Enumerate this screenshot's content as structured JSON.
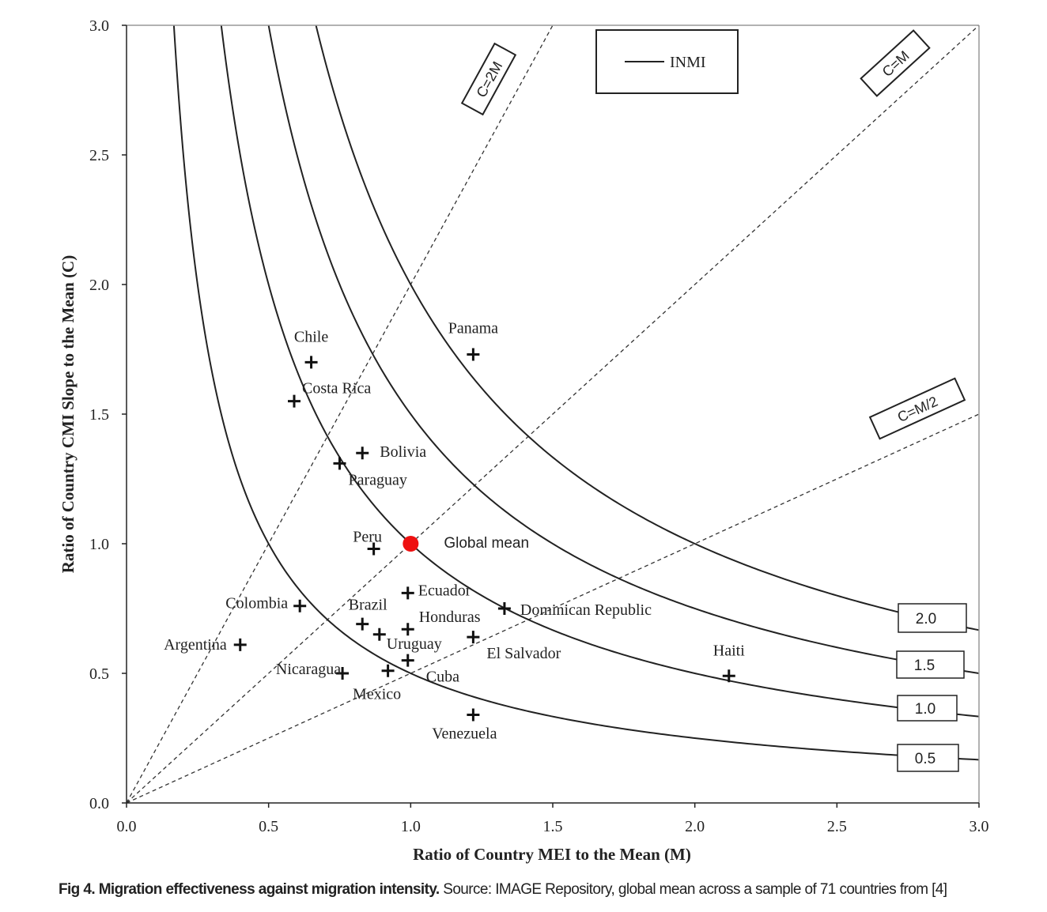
{
  "chart_data": {
    "type": "scatter",
    "xlabel": "Ratio of Country MEI to the Mean (M)",
    "ylabel": "Ratio of Country CMI Slope to the Mean (C)",
    "xlim": [
      0,
      3
    ],
    "ylim": [
      0,
      3
    ],
    "xticks": [
      {
        "value": 0,
        "label": "0.0"
      },
      {
        "value": 0.5,
        "label": "0.5"
      },
      {
        "value": 1,
        "label": "1.0"
      },
      {
        "value": 1.5,
        "label": "1.5"
      },
      {
        "value": 2,
        "label": "2.0"
      },
      {
        "value": 2.5,
        "label": "2.5"
      },
      {
        "value": 3,
        "label": "3.0"
      }
    ],
    "yticks": [
      {
        "value": 0,
        "label": "0.0"
      },
      {
        "value": 0.5,
        "label": "0.5"
      },
      {
        "value": 1,
        "label": "1.0"
      },
      {
        "value": 1.5,
        "label": "1.5"
      },
      {
        "value": 2,
        "label": "2.0"
      },
      {
        "value": 2.5,
        "label": "2.5"
      },
      {
        "value": 3,
        "label": "3.0"
      }
    ],
    "legend": "INMI",
    "curves": [
      {
        "value": 2,
        "label": "2.0"
      },
      {
        "value": 1.5,
        "label": "1.5"
      },
      {
        "value": 1,
        "label": "1.0"
      },
      {
        "value": 0.5,
        "label": "0.5"
      }
    ],
    "ref_lines": [
      {
        "label": "C=2M",
        "slope": 2
      },
      {
        "label": "C=M",
        "slope": 1
      },
      {
        "label": "C=M/2",
        "slope": 0.5
      }
    ],
    "points": [
      {
        "label": "Chile",
        "x": 0.65,
        "y": 1.7
      },
      {
        "label": "Panama",
        "x": 1.22,
        "y": 1.73
      },
      {
        "label": "Costa Rica",
        "x": 0.59,
        "y": 1.55
      },
      {
        "label": "Bolivia",
        "x": 0.83,
        "y": 1.35
      },
      {
        "label": "Paraguay",
        "x": 0.75,
        "y": 1.31
      },
      {
        "label": "Peru",
        "x": 0.87,
        "y": 0.98
      },
      {
        "label": "Ecuador",
        "x": 0.99,
        "y": 0.81
      },
      {
        "label": "Colombia",
        "x": 0.61,
        "y": 0.76
      },
      {
        "label": "Dominican Republic",
        "x": 1.33,
        "y": 0.75
      },
      {
        "label": "Brazil",
        "x": 0.83,
        "y": 0.69
      },
      {
        "label": "Honduras",
        "x": 0.99,
        "y": 0.67
      },
      {
        "label": "Uruguay",
        "x": 0.89,
        "y": 0.65
      },
      {
        "label": "El Salvador",
        "x": 1.22,
        "y": 0.64
      },
      {
        "label": "Argentina",
        "x": 0.4,
        "y": 0.61
      },
      {
        "label": "Cuba",
        "x": 0.99,
        "y": 0.55
      },
      {
        "label": "Nicaragua",
        "x": 0.76,
        "y": 0.5
      },
      {
        "label": "Mexico",
        "x": 0.92,
        "y": 0.51
      },
      {
        "label": "Haiti",
        "x": 2.12,
        "y": 0.49
      },
      {
        "label": "Venezuela",
        "x": 1.22,
        "y": 0.34
      }
    ],
    "global_mean": {
      "label": "Global mean",
      "x": 1.0,
      "y": 1.0,
      "color": "#ee1111"
    },
    "caption": {
      "bold": "Fig 4. Migration effectiveness against migration intensity.",
      "text": "Source: IMAGE Repository, global mean across a sample of 71 countries from [4]"
    }
  }
}
